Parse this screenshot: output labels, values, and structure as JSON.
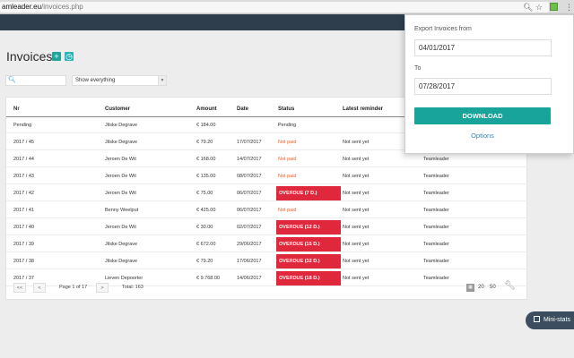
{
  "browser": {
    "url_host": "amleader.eu",
    "url_path": "/invoices.php",
    "icons": [
      "search-icon",
      "star-icon",
      "extension-icon",
      "menu-icon"
    ]
  },
  "page": {
    "title": "Invoices",
    "filter_select": "Show everything",
    "search_placeholder": ""
  },
  "table": {
    "columns": [
      "Nr",
      "Customer",
      "Amount",
      "Date",
      "Status",
      "Latest reminder"
    ],
    "rows": [
      {
        "nr": "Pending",
        "customer": "Jilske Degrave",
        "amount": "€ 184.00",
        "date": "",
        "status": "Pending",
        "status_type": "pending",
        "reminder": "",
        "source": ""
      },
      {
        "nr": "2017 / 45",
        "customer": "Jilske Degrave",
        "amount": "€ 79.20",
        "date": "17/07/2017",
        "status": "Not paid",
        "status_type": "notpaid",
        "reminder": "Not sent yet",
        "source": "Teamleader"
      },
      {
        "nr": "2017 / 44",
        "customer": "Jeroen De Wit",
        "amount": "€ 168.00",
        "date": "14/07/2017",
        "status": "Not paid",
        "status_type": "notpaid",
        "reminder": "Not sent yet",
        "source": "Teamleader"
      },
      {
        "nr": "2017 / 43",
        "customer": "Jeroen De Wit",
        "amount": "€ 135.00",
        "date": "08/07/2017",
        "status": "Not paid",
        "status_type": "notpaid",
        "reminder": "Not sent yet",
        "source": "Teamleader"
      },
      {
        "nr": "2017 / 42",
        "customer": "Jeroen De Wit",
        "amount": "€ 75.00",
        "date": "06/07/2017",
        "status": "OVERDUE (7 D.)",
        "status_type": "overdue",
        "reminder": "Not sent yet",
        "source": "Teamleader"
      },
      {
        "nr": "2017 / 41",
        "customer": "Benny Weelput",
        "amount": "€ 425.00",
        "date": "06/07/2017",
        "status": "Not paid",
        "status_type": "notpaid",
        "reminder": "Not sent yet",
        "source": "Teamleader"
      },
      {
        "nr": "2017 / 40",
        "customer": "Jeroen De Wit",
        "amount": "€ 30.00",
        "date": "02/07/2017",
        "status": "OVERDUE (12 D.)",
        "status_type": "overdue",
        "reminder": "Not sent yet",
        "source": "Teamleader"
      },
      {
        "nr": "2017 / 39",
        "customer": "Jilske Degrave",
        "amount": "€ 672.00",
        "date": "29/06/2017",
        "status": "OVERDUE (15 D.)",
        "status_type": "overdue",
        "reminder": "Not sent yet",
        "source": "Teamleader"
      },
      {
        "nr": "2017 / 38",
        "customer": "Jilske Degrave",
        "amount": "€ 79.20",
        "date": "17/06/2017",
        "status": "OVERDUE (32 D.)",
        "status_type": "overdue",
        "reminder": "Not sent yet",
        "source": "Teamleader"
      },
      {
        "nr": "2017 / 37",
        "customer": "Lieven Depoorter",
        "amount": "€ 9.768.00",
        "date": "14/06/2017",
        "status": "OVERDUE (18 D.)",
        "status_type": "overdue",
        "reminder": "Not sent yet",
        "source": "Teamleader"
      }
    ]
  },
  "pagination": {
    "first": "<<",
    "prev": "<",
    "page_info": "Page 1 of 17",
    "next": ">",
    "total": "Total: 163",
    "per_page_options": [
      "20",
      "50"
    ]
  },
  "ministats": {
    "label": "Mini-stats"
  },
  "popup": {
    "from_label": "Export Invoices from",
    "from_value": "04/01/2017",
    "to_label": "To",
    "to_value": "07/28/2017",
    "download_label": "DOWNLOAD",
    "options_label": "Options"
  },
  "colors": {
    "accent": "#18a49a",
    "overdue": "#e0283c",
    "notpaid": "#e8632b",
    "header": "#2f3e4d"
  }
}
